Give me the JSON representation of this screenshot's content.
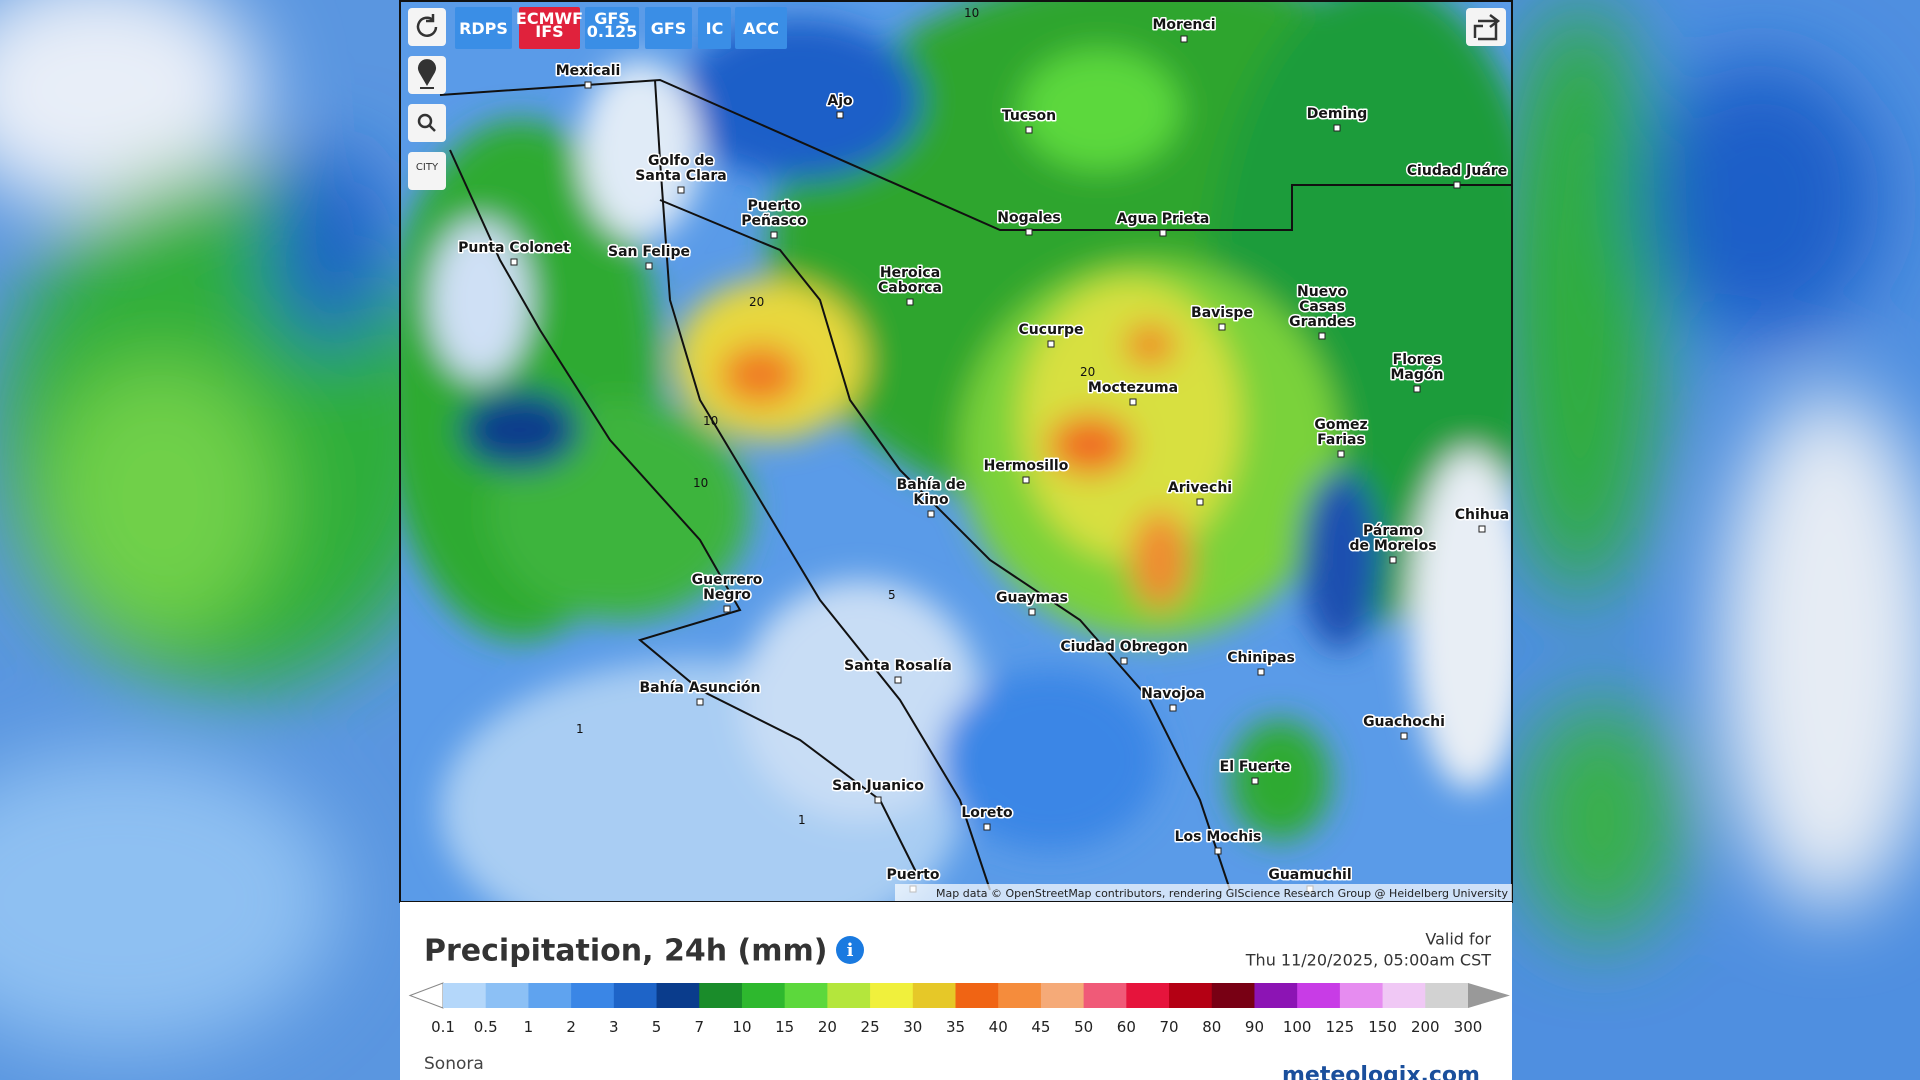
{
  "toolbar": {
    "buttons": [
      "RDPS",
      [
        "ECMWF",
        "IFS"
      ],
      [
        "GFS",
        "0.125"
      ],
      "GFS",
      "IC",
      "ACC"
    ],
    "city_button": "CITY"
  },
  "map": {
    "cities": [
      [
        "Mexicali"
      ],
      [
        "Morenci"
      ],
      [
        "Ajo"
      ],
      [
        "Tucson"
      ],
      [
        "Deming"
      ],
      [
        "Golfo de",
        "Santa Clara"
      ],
      [
        "Puerto",
        "Peñasco"
      ],
      [
        "Ciudad Juáre"
      ],
      [
        "Nogales"
      ],
      [
        "Agua Prieta"
      ],
      [
        "Punta Colonet"
      ],
      [
        "San Felipe"
      ],
      [
        "Heroica",
        "Caborca"
      ],
      [
        "Nuevo",
        "Casas",
        "Grandes"
      ],
      [
        "Bavispe"
      ],
      [
        "Cucurpe"
      ],
      [
        "Flores",
        "Magón"
      ],
      [
        "Moctezuma"
      ],
      [
        "Gomez",
        "Farias"
      ],
      [
        "Hermosillo"
      ],
      [
        "Bahía de",
        "Kino"
      ],
      [
        "Arivechi"
      ],
      [
        "Chihua"
      ],
      [
        "Páramo",
        "de Morelos"
      ],
      [
        "Guerrero",
        "Negro"
      ],
      [
        "Guaymas"
      ],
      [
        "Ciudad Obregon"
      ],
      [
        "Chinipas"
      ],
      [
        "Santa Rosalía"
      ],
      [
        "Bahía Asunción"
      ],
      [
        "Navojoa"
      ],
      [
        "Guachochi"
      ],
      [
        "El Fuerte"
      ],
      [
        "San Juanico"
      ],
      [
        "Loreto"
      ],
      [
        "Los Mochis"
      ],
      [
        "Puerto"
      ],
      [
        "Guamuchil"
      ]
    ],
    "contour_labels": [
      "10",
      "20",
      "10",
      "10",
      "20",
      "5",
      "1",
      "1"
    ],
    "attribution": "Map data © OpenStreetMap contributors, rendering GIScience Research Group @ Heidelberg University"
  },
  "legend_panel": {
    "title": "Precipitation, 24h (mm)",
    "valid_label": "Valid for",
    "valid_time": "Thu 11/20/2025, 05:00am CST",
    "scale_labels": [
      "0.1",
      "0.5",
      "1",
      "2",
      "3",
      "5",
      "7",
      "10",
      "15",
      "20",
      "25",
      "30",
      "35",
      "40",
      "45",
      "50",
      "60",
      "70",
      "80",
      "90",
      "100",
      "125",
      "150",
      "200",
      "300"
    ],
    "scale_colors": [
      "#b4d7fa",
      "#8cc0f5",
      "#5fa3ef",
      "#3a86e6",
      "#1e64c8",
      "#0a3c8c",
      "#1a8c2a",
      "#2eb82e",
      "#5cd83c",
      "#b4e63c",
      "#f0f03c",
      "#e6c828",
      "#f06414",
      "#f58c3c",
      "#f5aa78",
      "#f05a78",
      "#e6143c",
      "#b40014",
      "#780014",
      "#8c14b4",
      "#c83ce6",
      "#e68cf0",
      "#f0c8f5",
      "#d2d2d2"
    ],
    "region": "Sonora",
    "brand": "meteologix.com"
  }
}
